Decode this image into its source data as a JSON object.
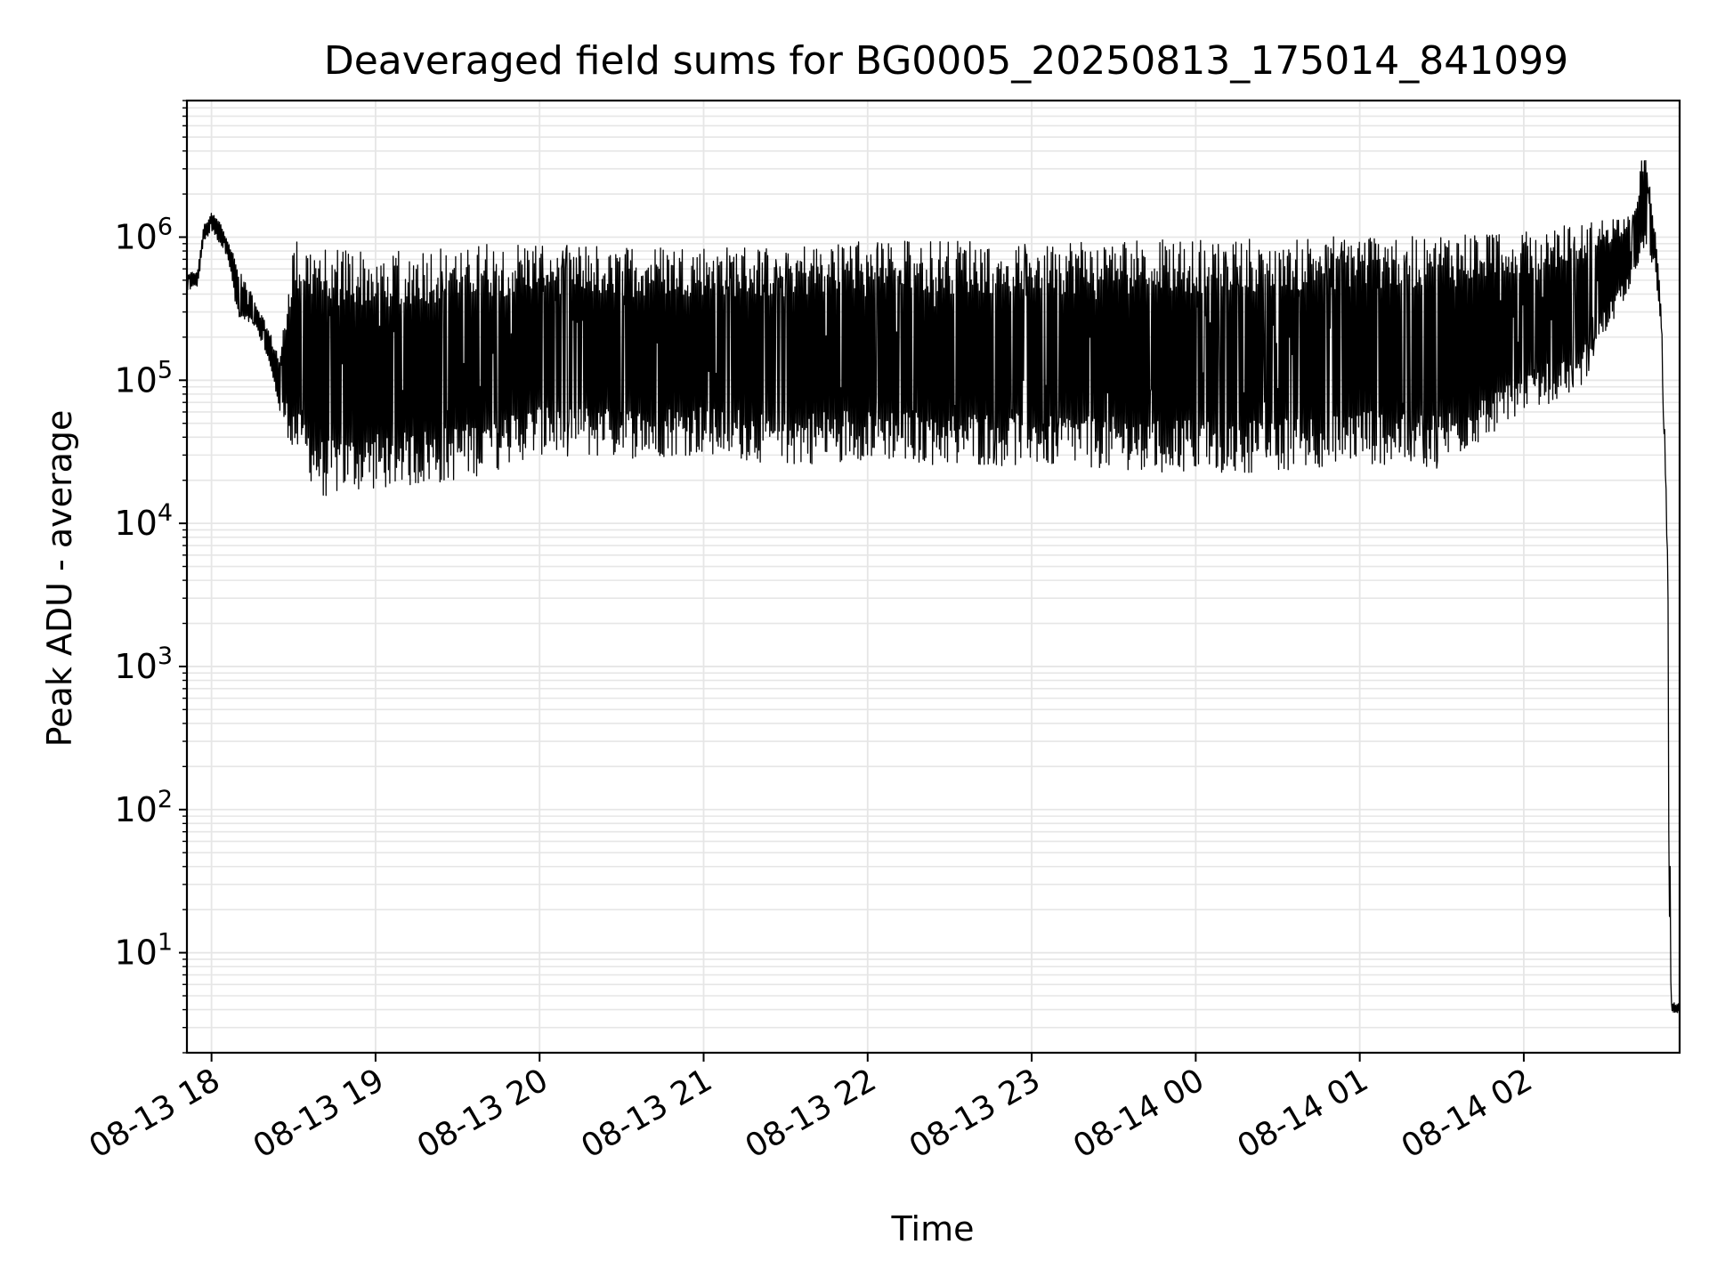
{
  "chart_data": {
    "type": "line",
    "title": "Deaveraged field sums for BG0005_20250813_175014_841099",
    "xlabel": "Time",
    "ylabel": "Peak ADU - average",
    "yscale": "log",
    "ylim": [
      2,
      9000000
    ],
    "xlim": [
      "2025-08-13 17:51",
      "2025-08-14 02:57"
    ],
    "grid": true,
    "line_color": "#000000",
    "grid_color": "#e6e6e6",
    "x_ticks": [
      {
        "t": "2025-08-13 18:00",
        "label": "08-13 18"
      },
      {
        "t": "2025-08-13 19:00",
        "label": "08-13 19"
      },
      {
        "t": "2025-08-13 20:00",
        "label": "08-13 20"
      },
      {
        "t": "2025-08-13 21:00",
        "label": "08-13 21"
      },
      {
        "t": "2025-08-13 22:00",
        "label": "08-13 22"
      },
      {
        "t": "2025-08-13 23:00",
        "label": "08-13 23"
      },
      {
        "t": "2025-08-14 00:00",
        "label": "08-14 00"
      },
      {
        "t": "2025-08-14 01:00",
        "label": "08-14 01"
      },
      {
        "t": "2025-08-14 02:00",
        "label": "08-14 02"
      }
    ],
    "y_ticks": [
      {
        "value": 10,
        "base": "10",
        "exp": "1"
      },
      {
        "value": 100,
        "base": "10",
        "exp": "2"
      },
      {
        "value": 1000,
        "base": "10",
        "exp": "3"
      },
      {
        "value": 10000,
        "base": "10",
        "exp": "4"
      },
      {
        "value": 100000,
        "base": "10",
        "exp": "5"
      },
      {
        "value": 1000000,
        "base": "10",
        "exp": "6"
      }
    ],
    "series": [
      {
        "upper_envelope": [
          [
            "2025-08-13 17:51",
            550000
          ],
          [
            "2025-08-13 17:55",
            600000
          ],
          [
            "2025-08-13 17:57",
            1200000
          ],
          [
            "2025-08-13 18:00",
            1500000
          ],
          [
            "2025-08-13 18:03",
            1300000
          ],
          [
            "2025-08-13 18:06",
            1000000
          ],
          [
            "2025-08-13 18:10",
            600000
          ],
          [
            "2025-08-13 18:15",
            400000
          ],
          [
            "2025-08-13 18:20",
            250000
          ],
          [
            "2025-08-13 18:25",
            150000
          ],
          [
            "2025-08-13 18:30",
            1000000
          ],
          [
            "2025-08-13 18:40",
            900000
          ],
          [
            "2025-08-13 19:00",
            850000
          ],
          [
            "2025-08-13 19:20",
            900000
          ],
          [
            "2025-08-13 19:40",
            950000
          ],
          [
            "2025-08-13 20:00",
            950000
          ],
          [
            "2025-08-13 20:30",
            900000
          ],
          [
            "2025-08-13 21:00",
            900000
          ],
          [
            "2025-08-13 21:30",
            900000
          ],
          [
            "2025-08-13 22:00",
            1000000
          ],
          [
            "2025-08-13 22:30",
            1000000
          ],
          [
            "2025-08-13 23:00",
            1000000
          ],
          [
            "2025-08-13 23:30",
            1000000
          ],
          [
            "2025-08-14 00:00",
            1050000
          ],
          [
            "2025-08-14 00:30",
            1050000
          ],
          [
            "2025-08-14 01:00",
            1100000
          ],
          [
            "2025-08-14 01:30",
            1100000
          ],
          [
            "2025-08-14 02:00",
            1200000
          ],
          [
            "2025-08-14 02:20",
            1300000
          ],
          [
            "2025-08-14 02:40",
            1500000
          ],
          [
            "2025-08-14 02:44",
            4800000
          ],
          [
            "2025-08-14 02:48",
            1200000
          ],
          [
            "2025-08-14 02:50",
            400000
          ],
          [
            "2025-08-14 02:51",
            150000
          ],
          [
            "2025-08-14 02:52",
            20000
          ],
          [
            "2025-08-14 02:53",
            3000
          ],
          [
            "2025-08-14 02:53",
            100
          ],
          [
            "2025-08-14 02:54",
            18
          ],
          [
            "2025-08-14 02:54",
            4.5
          ],
          [
            "2025-08-14 02:57",
            4.5
          ]
        ],
        "lower_envelope": [
          [
            "2025-08-13 17:51",
            420000
          ],
          [
            "2025-08-13 17:55",
            450000
          ],
          [
            "2025-08-13 17:57",
            900000
          ],
          [
            "2025-08-13 18:00",
            1100000
          ],
          [
            "2025-08-13 18:03",
            900000
          ],
          [
            "2025-08-13 18:06",
            700000
          ],
          [
            "2025-08-13 18:10",
            250000
          ],
          [
            "2025-08-13 18:15",
            250000
          ],
          [
            "2025-08-13 18:20",
            150000
          ],
          [
            "2025-08-13 18:25",
            60000
          ],
          [
            "2025-08-13 18:30",
            30000
          ],
          [
            "2025-08-13 18:40",
            15000
          ],
          [
            "2025-08-13 19:00",
            17000
          ],
          [
            "2025-08-13 19:20",
            18000
          ],
          [
            "2025-08-13 19:40",
            22000
          ],
          [
            "2025-08-13 20:00",
            30000
          ],
          [
            "2025-08-13 20:30",
            28000
          ],
          [
            "2025-08-13 21:00",
            30000
          ],
          [
            "2025-08-13 21:30",
            25000
          ],
          [
            "2025-08-13 22:00",
            28000
          ],
          [
            "2025-08-13 22:30",
            25000
          ],
          [
            "2025-08-13 23:00",
            25000
          ],
          [
            "2025-08-13 23:30",
            24000
          ],
          [
            "2025-08-14 00:00",
            22000
          ],
          [
            "2025-08-14 00:30",
            23000
          ],
          [
            "2025-08-14 01:00",
            26000
          ],
          [
            "2025-08-14 01:30",
            24000
          ],
          [
            "2025-08-14 02:00",
            60000
          ],
          [
            "2025-08-14 02:20",
            80000
          ],
          [
            "2025-08-14 02:40",
            500000
          ],
          [
            "2025-08-14 02:44",
            700000
          ],
          [
            "2025-08-14 02:48",
            600000
          ],
          [
            "2025-08-14 02:50",
            250000
          ],
          [
            "2025-08-14 02:51",
            60000
          ],
          [
            "2025-08-14 02:52",
            15000
          ],
          [
            "2025-08-14 02:53",
            1500
          ],
          [
            "2025-08-14 02:53",
            30
          ],
          [
            "2025-08-14 02:54",
            4
          ],
          [
            "2025-08-14 02:54",
            3.8
          ],
          [
            "2025-08-14 02:57",
            3.8
          ]
        ]
      }
    ]
  }
}
